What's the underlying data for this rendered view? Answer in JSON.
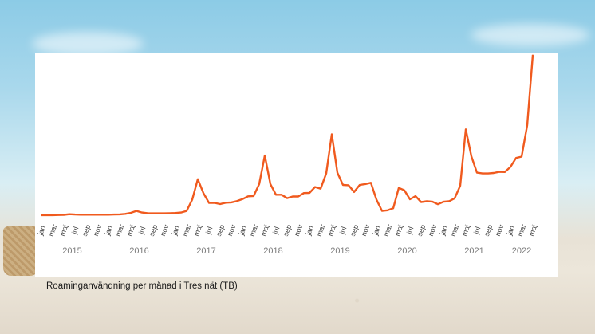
{
  "caption": "Roaminganvändning per månad i Tres nät (TB)",
  "colors": {
    "line": "#f05a1e",
    "panel": "#ffffff"
  },
  "chart_data": {
    "type": "line",
    "title": "",
    "xlabel": "",
    "ylabel": "",
    "grid": false,
    "month_tick_labels": [
      "jan",
      "mar",
      "maj",
      "jul",
      "sep",
      "nov"
    ],
    "years": [
      "2015",
      "2016",
      "2017",
      "2018",
      "2019",
      "2020",
      "2021",
      "2022"
    ],
    "x_start": "2015-01",
    "ylim": [
      0,
      100
    ],
    "values": [
      2,
      2,
      2,
      2.1,
      2.2,
      2.6,
      2.4,
      2.3,
      2.3,
      2.3,
      2.3,
      2.3,
      2.3,
      2.4,
      2.5,
      2.8,
      3.4,
      4.6,
      3.6,
      3.2,
      3.1,
      3.1,
      3.1,
      3.2,
      3.3,
      3.6,
      4.6,
      11.5,
      24,
      15.5,
      9.5,
      9.5,
      8.8,
      9.6,
      9.8,
      10.6,
      11.8,
      13.5,
      13.7,
      21,
      38.5,
      21,
      14.5,
      14.5,
      12.4,
      13.4,
      13.4,
      15.5,
      15.6,
      19.2,
      18.2,
      27.5,
      51.5,
      28,
      20.5,
      20.3,
      16.2,
      20.5,
      21,
      21.8,
      11.5,
      4.6,
      5,
      6.2,
      18.7,
      17.2,
      11.7,
      13.6,
      10,
      10.5,
      10.3,
      8.7,
      10.2,
      10.5,
      12.3,
      20,
      54.5,
      38,
      28,
      27.5,
      27.5,
      27.8,
      28.5,
      28.4,
      31.5,
      37,
      37.8,
      57,
      100
    ]
  }
}
